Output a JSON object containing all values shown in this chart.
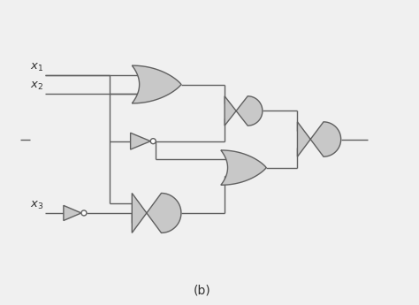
{
  "bg_color": "#f0f0f0",
  "gate_fill": "#c8c8c8",
  "gate_edge": "#606060",
  "wire_color": "#606060",
  "text_color": "#303030",
  "lw": 1.0,
  "label": "(b)",
  "figsize": [
    4.74,
    3.45
  ],
  "dpi": 100,
  "xlim": [
    0,
    10
  ],
  "ylim": [
    0,
    8
  ]
}
